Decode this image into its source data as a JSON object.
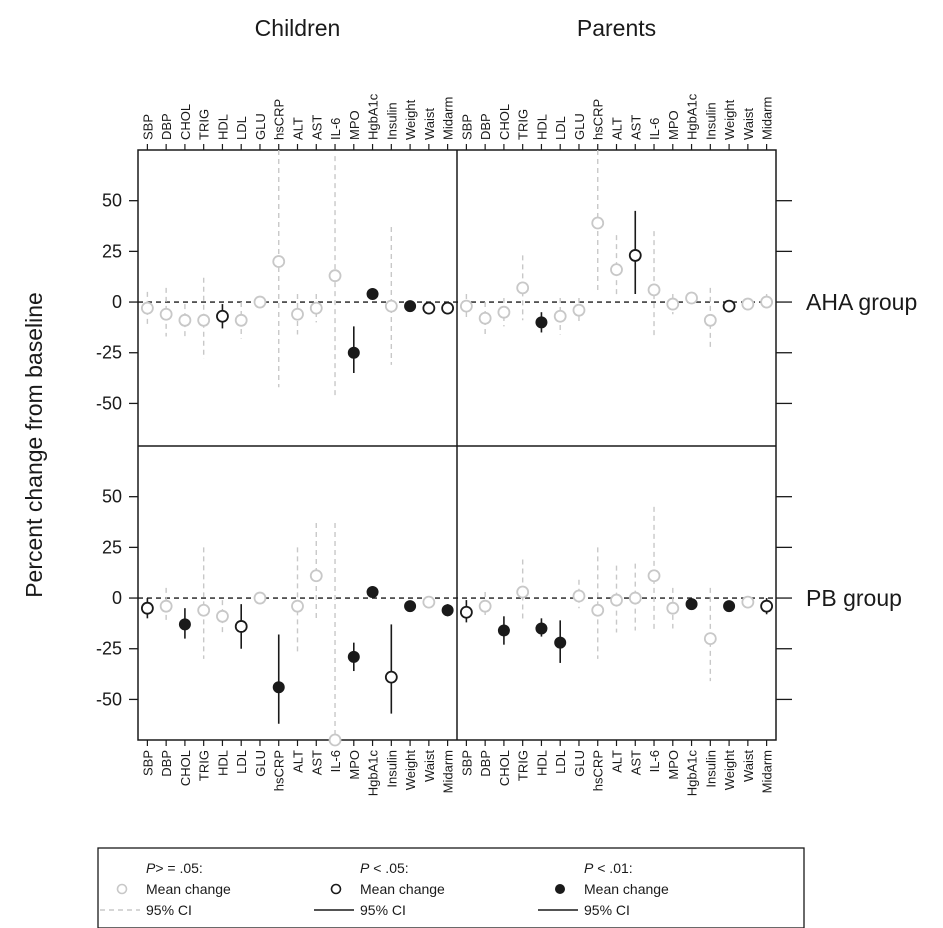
{
  "chart_data": {
    "type": "scatter",
    "ylabel": "Percent change from baseline",
    "columns": [
      "Children",
      "Parents"
    ],
    "rows": [
      "AHA group",
      "PB group"
    ],
    "variables": [
      "SBP",
      "DBP",
      "CHOL",
      "TRIG",
      "HDL",
      "LDL",
      "GLU",
      "hsCRP",
      "ALT",
      "AST",
      "IL-6",
      "MPO",
      "HgbA1c",
      "Insulin",
      "Weight",
      "Waist",
      "Midarm"
    ],
    "yticks": [
      50,
      25,
      0,
      -25,
      -50
    ],
    "ylim": [
      -71,
      75
    ],
    "reference_line": 0,
    "panels": [
      {
        "row": "AHA group",
        "column": "Children",
        "points": [
          {
            "var": "SBP",
            "mean": -3,
            "lo": -12,
            "hi": 5,
            "sig": "ns"
          },
          {
            "var": "DBP",
            "mean": -6,
            "lo": -17,
            "hi": 7,
            "sig": "ns"
          },
          {
            "var": "CHOL",
            "mean": -9,
            "lo": -17,
            "hi": -1,
            "sig": "ns"
          },
          {
            "var": "TRIG",
            "mean": -9,
            "lo": -28,
            "hi": 12,
            "sig": "ns"
          },
          {
            "var": "HDL",
            "mean": -7,
            "lo": -13,
            "hi": -1,
            "sig": "p05"
          },
          {
            "var": "LDL",
            "mean": -9,
            "lo": -18,
            "hi": 0,
            "sig": "ns"
          },
          {
            "var": "GLU",
            "mean": 0,
            "lo": -3,
            "hi": 3,
            "sig": "ns"
          },
          {
            "var": "hsCRP",
            "mean": 20,
            "lo": -42,
            "hi": 75,
            "sig": "ns"
          },
          {
            "var": "ALT",
            "mean": -6,
            "lo": -16,
            "hi": 4,
            "sig": "ns"
          },
          {
            "var": "AST",
            "mean": -3,
            "lo": -10,
            "hi": 4,
            "sig": "ns"
          },
          {
            "var": "IL-6",
            "mean": 13,
            "lo": -47,
            "hi": 72,
            "sig": "ns"
          },
          {
            "var": "MPO",
            "mean": -25,
            "lo": -35,
            "hi": -12,
            "sig": "p01"
          },
          {
            "var": "HgbA1c",
            "mean": 4,
            "lo": 2,
            "hi": 6,
            "sig": "p01"
          },
          {
            "var": "Insulin",
            "mean": -2,
            "lo": -31,
            "hi": 37,
            "sig": "ns"
          },
          {
            "var": "Weight",
            "mean": -2,
            "lo": -4,
            "hi": 0,
            "sig": "p01"
          },
          {
            "var": "Waist",
            "mean": -3,
            "lo": -6,
            "hi": 0,
            "sig": "p05"
          },
          {
            "var": "Midarm",
            "mean": -3,
            "lo": -6,
            "hi": 0,
            "sig": "p05"
          }
        ]
      },
      {
        "row": "AHA group",
        "column": "Parents",
        "points": [
          {
            "var": "SBP",
            "mean": -2,
            "lo": -8,
            "hi": 4,
            "sig": "ns"
          },
          {
            "var": "DBP",
            "mean": -8,
            "lo": -17,
            "hi": 0,
            "sig": "ns"
          },
          {
            "var": "CHOL",
            "mean": -5,
            "lo": -12,
            "hi": 2,
            "sig": "ns"
          },
          {
            "var": "TRIG",
            "mean": 7,
            "lo": -9,
            "hi": 23,
            "sig": "ns"
          },
          {
            "var": "HDL",
            "mean": -10,
            "lo": -15,
            "hi": -5,
            "sig": "p01"
          },
          {
            "var": "LDL",
            "mean": -7,
            "lo": -16,
            "hi": 2,
            "sig": "ns"
          },
          {
            "var": "GLU",
            "mean": -4,
            "lo": -10,
            "hi": 2,
            "sig": "ns"
          },
          {
            "var": "hsCRP",
            "mean": 39,
            "lo": 5,
            "hi": 75,
            "sig": "ns"
          },
          {
            "var": "ALT",
            "mean": 16,
            "lo": 2,
            "hi": 33,
            "sig": "ns"
          },
          {
            "var": "AST",
            "mean": 23,
            "lo": 4,
            "hi": 45,
            "sig": "p05"
          },
          {
            "var": "IL-6",
            "mean": 6,
            "lo": -17,
            "hi": 35,
            "sig": "ns"
          },
          {
            "var": "MPO",
            "mean": -1,
            "lo": -6,
            "hi": 4,
            "sig": "ns"
          },
          {
            "var": "HgbA1c",
            "mean": 2,
            "lo": -1,
            "hi": 5,
            "sig": "ns"
          },
          {
            "var": "Insulin",
            "mean": -9,
            "lo": -24,
            "hi": 7,
            "sig": "ns"
          },
          {
            "var": "Weight",
            "mean": -2,
            "lo": -4,
            "hi": 0,
            "sig": "p05"
          },
          {
            "var": "Waist",
            "mean": -1,
            "lo": -4,
            "hi": 2,
            "sig": "ns"
          },
          {
            "var": "Midarm",
            "mean": 0,
            "lo": -4,
            "hi": 4,
            "sig": "ns"
          }
        ]
      },
      {
        "row": "PB group",
        "column": "Children",
        "points": [
          {
            "var": "SBP",
            "mean": -5,
            "lo": -10,
            "hi": 0,
            "sig": "p05"
          },
          {
            "var": "DBP",
            "mean": -4,
            "lo": -12,
            "hi": 5,
            "sig": "ns"
          },
          {
            "var": "CHOL",
            "mean": -13,
            "lo": -20,
            "hi": -5,
            "sig": "p01"
          },
          {
            "var": "TRIG",
            "mean": -6,
            "lo": -30,
            "hi": 25,
            "sig": "ns"
          },
          {
            "var": "HDL",
            "mean": -9,
            "lo": -17,
            "hi": -1,
            "sig": "ns"
          },
          {
            "var": "LDL",
            "mean": -14,
            "lo": -25,
            "hi": -3,
            "sig": "p05"
          },
          {
            "var": "GLU",
            "mean": 0,
            "lo": -3,
            "hi": 3,
            "sig": "ns"
          },
          {
            "var": "hsCRP",
            "mean": -44,
            "lo": -62,
            "hi": -18,
            "sig": "p01"
          },
          {
            "var": "ALT",
            "mean": -4,
            "lo": -28,
            "hi": 25,
            "sig": "ns"
          },
          {
            "var": "AST",
            "mean": 11,
            "lo": -10,
            "hi": 37,
            "sig": "ns"
          },
          {
            "var": "IL-6",
            "mean": -70,
            "lo": -71,
            "hi": 37,
            "sig": "ns"
          },
          {
            "var": "MPO",
            "mean": -29,
            "lo": -36,
            "hi": -22,
            "sig": "p01"
          },
          {
            "var": "HgbA1c",
            "mean": 3,
            "lo": 1,
            "hi": 5,
            "sig": "p01"
          },
          {
            "var": "Insulin",
            "mean": -39,
            "lo": -57,
            "hi": -13,
            "sig": "p05"
          },
          {
            "var": "Weight",
            "mean": -4,
            "lo": -6,
            "hi": -2,
            "sig": "p01"
          },
          {
            "var": "Waist",
            "mean": -2,
            "lo": -5,
            "hi": 1,
            "sig": "ns"
          },
          {
            "var": "Midarm",
            "mean": -6,
            "lo": -9,
            "hi": -3,
            "sig": "p01"
          }
        ]
      },
      {
        "row": "PB group",
        "column": "Parents",
        "points": [
          {
            "var": "SBP",
            "mean": -7,
            "lo": -12,
            "hi": -1,
            "sig": "p05"
          },
          {
            "var": "DBP",
            "mean": -4,
            "lo": -10,
            "hi": 3,
            "sig": "ns"
          },
          {
            "var": "CHOL",
            "mean": -16,
            "lo": -23,
            "hi": -9,
            "sig": "p01"
          },
          {
            "var": "TRIG",
            "mean": 3,
            "lo": -12,
            "hi": 19,
            "sig": "ns"
          },
          {
            "var": "HDL",
            "mean": -15,
            "lo": -19,
            "hi": -10,
            "sig": "p01"
          },
          {
            "var": "LDL",
            "mean": -22,
            "lo": -32,
            "hi": -11,
            "sig": "p01"
          },
          {
            "var": "GLU",
            "mean": 1,
            "lo": -5,
            "hi": 9,
            "sig": "ns"
          },
          {
            "var": "hsCRP",
            "mean": -6,
            "lo": -30,
            "hi": 25,
            "sig": "ns"
          },
          {
            "var": "ALT",
            "mean": -1,
            "lo": -17,
            "hi": 16,
            "sig": "ns"
          },
          {
            "var": "AST",
            "mean": 0,
            "lo": -16,
            "hi": 17,
            "sig": "ns"
          },
          {
            "var": "IL-6",
            "mean": 11,
            "lo": -17,
            "hi": 45,
            "sig": "ns"
          },
          {
            "var": "MPO",
            "mean": -5,
            "lo": -15,
            "hi": 5,
            "sig": "ns"
          },
          {
            "var": "HgbA1c",
            "mean": -3,
            "lo": -5,
            "hi": -1,
            "sig": "p01"
          },
          {
            "var": "Insulin",
            "mean": -20,
            "lo": -41,
            "hi": 5,
            "sig": "ns"
          },
          {
            "var": "Weight",
            "mean": -4,
            "lo": -6,
            "hi": -2,
            "sig": "p01"
          },
          {
            "var": "Waist",
            "mean": -2,
            "lo": -5,
            "hi": 1,
            "sig": "ns"
          },
          {
            "var": "Midarm",
            "mean": -4,
            "lo": -8,
            "hi": 0,
            "sig": "p05"
          }
        ]
      }
    ]
  },
  "legend": {
    "items": [
      {
        "sig": "ns",
        "p_symbol": "P",
        "p_rest": "> = .05:",
        "mean_label": "Mean change",
        "ci_label": "95% CI"
      },
      {
        "sig": "p05",
        "p_symbol": "P",
        "p_rest": " < .05:",
        "mean_label": "Mean change",
        "ci_label": "95% CI"
      },
      {
        "sig": "p01",
        "p_symbol": "P",
        "p_rest": " < .01:",
        "mean_label": "Mean change",
        "ci_label": "95% CI"
      }
    ]
  },
  "colors": {
    "nonsignificant": "#c8c8c8",
    "significant": "#1a1a1a",
    "axis": "#1a1a1a"
  }
}
